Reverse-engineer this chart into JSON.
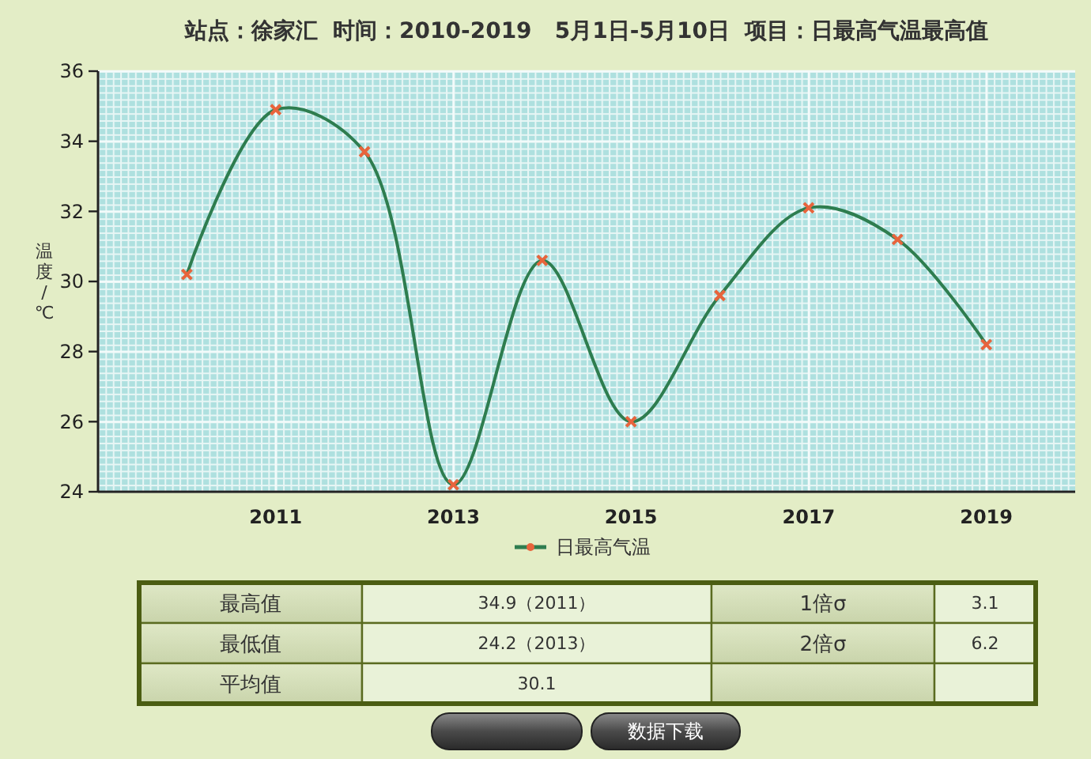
{
  "chart_data": {
    "type": "line",
    "title": "站点：徐家汇  时间：2010-2019   5月1日-5月10日  项目：日最高气温最高值",
    "ylabel": "温度/℃",
    "x": [
      2010,
      2011,
      2012,
      2013,
      2014,
      2015,
      2016,
      2017,
      2018,
      2019
    ],
    "series": [
      {
        "name": "日最高气温",
        "color": "#2e7d4f",
        "values": [
          30.2,
          34.9,
          33.7,
          24.2,
          30.6,
          26.0,
          29.6,
          32.1,
          31.2,
          28.2
        ]
      }
    ],
    "xlim": [
      2009,
      2020
    ],
    "ylim": [
      24,
      36
    ],
    "xticks": [
      2011,
      2013,
      2015,
      2017,
      2019
    ],
    "yticks": [
      24,
      26,
      28,
      30,
      32,
      34,
      36
    ],
    "grid": true,
    "legend": "bottom",
    "marker": "cross",
    "annotations": [
      "最高值",
      "34.9（2011）",
      "1倍σ",
      "3.1",
      "最低值",
      "24.2（2013）",
      "2倍σ",
      "6.2",
      "平均值",
      "30.1",
      "数据下载"
    ]
  }
}
